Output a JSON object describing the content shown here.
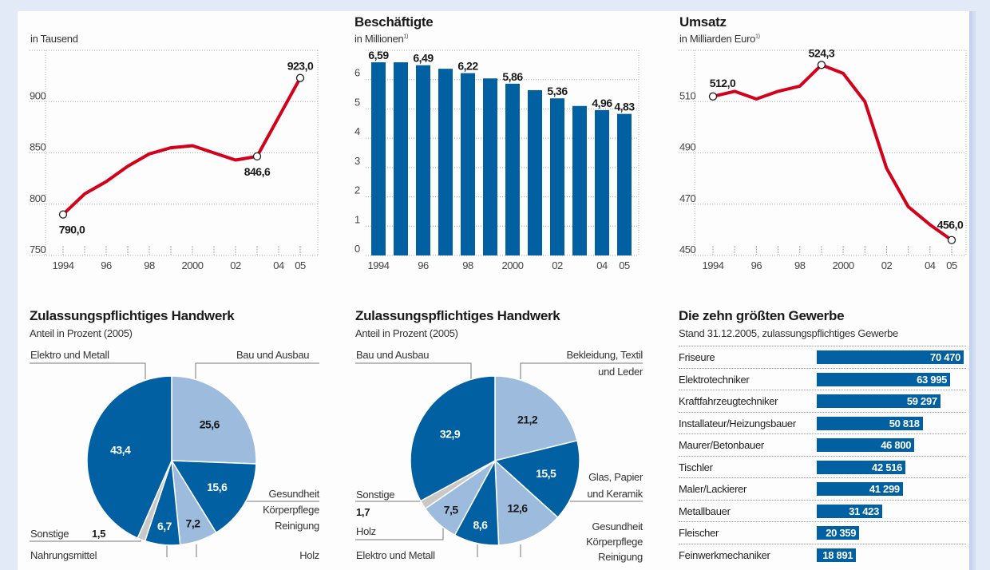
{
  "colors": {
    "dark_blue": "#0060a2",
    "light_blue": "#9dbcdd",
    "red": "#d2001a",
    "gray": "#c8c8c8"
  },
  "chart_data": [
    {
      "type": "line",
      "title": "",
      "subtitle": "in Tausend",
      "x": [
        1994,
        1995,
        1996,
        1997,
        1998,
        1999,
        2000,
        2001,
        2002,
        2003,
        2004,
        2005
      ],
      "values": [
        790.0,
        810,
        822,
        837,
        849,
        855,
        857,
        850,
        843,
        846.6,
        884.8,
        923.0
      ],
      "data_labels": [
        {
          "x": 1994,
          "label": "790,0"
        },
        {
          "x": 2003,
          "label": "846,6"
        },
        {
          "x": 2005,
          "label": "923,0"
        }
      ],
      "ylim": [
        750,
        950
      ],
      "yticks": [
        "750",
        "800",
        "850",
        "900"
      ],
      "xticks": [
        "1994",
        "96",
        "98",
        "2000",
        "02",
        "04",
        "05"
      ],
      "grid": true
    },
    {
      "type": "bar",
      "title": "Beschäftigte",
      "subtitle": "in Millionen",
      "footnote": "1)",
      "categories": [
        "1994",
        "1995",
        "1996",
        "1997",
        "1998",
        "1999",
        "2000",
        "2001",
        "2002",
        "2003",
        "2004",
        "2005"
      ],
      "values": [
        6.59,
        6.59,
        6.49,
        6.37,
        6.22,
        6.04,
        5.86,
        5.64,
        5.36,
        5.1,
        4.96,
        4.83
      ],
      "data_labels": [
        {
          "i": 0,
          "label": "6,59"
        },
        {
          "i": 2,
          "label": "6,49"
        },
        {
          "i": 4,
          "label": "6,22"
        },
        {
          "i": 6,
          "label": "5,86"
        },
        {
          "i": 8,
          "label": "5,36"
        },
        {
          "i": 10,
          "label": "4,96"
        },
        {
          "i": 11,
          "label": "4,83"
        }
      ],
      "ylim": [
        0,
        7
      ],
      "yticks": [
        "0",
        "1",
        "2",
        "3",
        "4",
        "5",
        "6"
      ],
      "xticks": [
        "1994",
        "96",
        "98",
        "2000",
        "02",
        "04",
        "05"
      ],
      "grid": true
    },
    {
      "type": "line",
      "title": "Umsatz",
      "subtitle": "in Milliarden Euro",
      "footnote": "1)",
      "x": [
        1994,
        1995,
        1996,
        1997,
        1998,
        1999,
        2000,
        2001,
        2002,
        2003,
        2004,
        2005
      ],
      "values": [
        512.0,
        514,
        511,
        514,
        516,
        524.3,
        521,
        510,
        484,
        469,
        462,
        456.0
      ],
      "data_labels": [
        {
          "x": 1994,
          "label": "512,0"
        },
        {
          "x": 1999,
          "label": "524,3"
        },
        {
          "x": 2005,
          "label": "456,0"
        }
      ],
      "ylim": [
        450,
        530
      ],
      "yticks": [
        "450",
        "470",
        "490",
        "510"
      ],
      "xticks": [
        "1994",
        "96",
        "98",
        "2000",
        "02",
        "04",
        "05"
      ],
      "grid": true
    },
    {
      "type": "pie",
      "title": "Zulassungspflichtiges Handwerk",
      "subtitle": "Anteil in Prozent (2005)",
      "slices": [
        {
          "name": "Bau und Ausbau",
          "value": 25.6,
          "label": "25,6",
          "shade": "light"
        },
        {
          "name": "Gesundheit Körperpflege Reinigung",
          "value": 15.6,
          "label": "15,6",
          "shade": "dark"
        },
        {
          "name": "Holz",
          "value": 7.2,
          "label": "7,2",
          "shade": "light"
        },
        {
          "name": "Nahrungsmittel",
          "value": 6.7,
          "label": "6,7",
          "shade": "dark"
        },
        {
          "name": "Sonstige",
          "value": 1.5,
          "label": "1,5",
          "shade": "gray"
        },
        {
          "name": "Elektro und Metall",
          "value": 43.4,
          "label": "43,4",
          "shade": "dark"
        }
      ],
      "legend_labels": {
        "elektro": "Elektro und Metall",
        "bau": "Bau und Ausbau",
        "ges1": "Gesundheit",
        "ges2": "Körperpflege",
        "ges3": "Reinigung",
        "sonstige": "Sonstige",
        "nahrung": "Nahrungsmittel",
        "holz": "Holz"
      }
    },
    {
      "type": "pie",
      "title": "Zulassungspflichtiges Handwerk",
      "subtitle": "Anteil in Prozent (2005)",
      "slices": [
        {
          "name": "Bekleidung, Textil und Leder",
          "value": 21.2,
          "label": "21,2",
          "shade": "light"
        },
        {
          "name": "Glas, Papier und Keramik",
          "value": 15.5,
          "label": "15,5",
          "shade": "dark"
        },
        {
          "name": "Gesundheit Körperpflege Reinigung",
          "value": 12.6,
          "label": "12,6",
          "shade": "light"
        },
        {
          "name": "Elektro und Metall",
          "value": 8.6,
          "label": "8,6",
          "shade": "dark"
        },
        {
          "name": "Holz",
          "value": 7.5,
          "label": "7,5",
          "shade": "light"
        },
        {
          "name": "Sonstige",
          "value": 1.7,
          "label": "1,7",
          "shade": "gray"
        },
        {
          "name": "Bau und Ausbau",
          "value": 32.9,
          "label": "32,9",
          "shade": "dark"
        }
      ],
      "legend_labels": {
        "bau": "Bau und Ausbau",
        "bek1": "Bekleidung, Textil",
        "bek2": "und Leder",
        "glas1": "Glas, Papier",
        "glas2": "und Keramik",
        "sonstige": "Sonstige",
        "holz": "Holz",
        "elektro": "Elektro und Metall",
        "ges1": "Gesundheit",
        "ges2": "Körperpflege",
        "ges3": "Reinigung"
      }
    },
    {
      "type": "bar",
      "orientation": "horizontal",
      "title": "Die zehn größten Gewerbe",
      "subtitle": "Stand 31.12.2005, zulassungspflichtiges Gewerbe",
      "categories": [
        "Friseure",
        "Elektrotechniker",
        "Kraftfahrzeugtechniker",
        "Installateur/Heizungsbauer",
        "Maurer/Betonbauer",
        "Tischler",
        "Maler/Lackierer",
        "Metallbauer",
        "Fleischer",
        "Feinwerkmechaniker"
      ],
      "values": [
        70470,
        63995,
        59297,
        50818,
        46800,
        42516,
        41299,
        31423,
        20359,
        18891
      ],
      "labels": [
        "70 470",
        "63 995",
        "59 297",
        "50 818",
        "46 800",
        "42 516",
        "41 299",
        "31 423",
        "20 359",
        "18 891"
      ]
    }
  ]
}
